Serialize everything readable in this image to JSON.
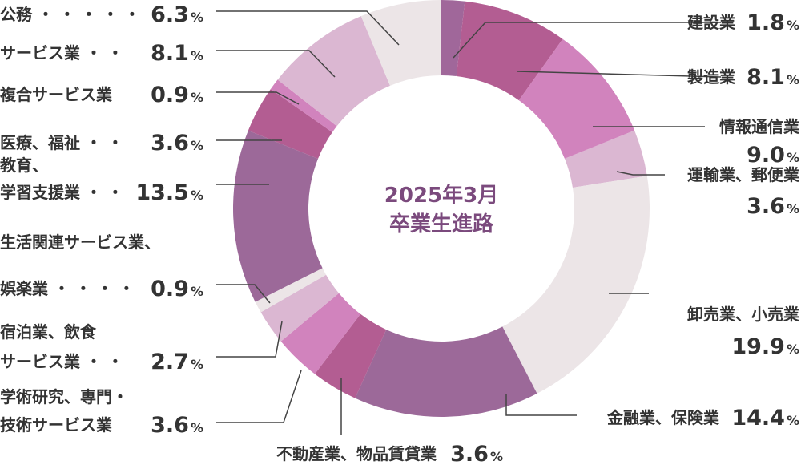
{
  "chart_data": {
    "type": "pie",
    "style": "donut",
    "center_title": [
      "2025年3月",
      "卒業生進路"
    ],
    "percent_sign": "%",
    "colors": {
      "center_text": "#7b4a7d",
      "label_text": "#333333",
      "leader_line": "#444444"
    },
    "slices": [
      {
        "id": "construction",
        "label_lines": [
          "建設業"
        ],
        "value_text": "1.8",
        "value": 1.8,
        "color": "#a0679a"
      },
      {
        "id": "manufacturing",
        "label_lines": [
          "製造業"
        ],
        "value_text": "8.1",
        "value": 8.1,
        "color": "#b35d92"
      },
      {
        "id": "info-comm",
        "label_lines": [
          "情報通信業"
        ],
        "value_text": "9.0",
        "value": 9.0,
        "color": "#d183bd"
      },
      {
        "id": "transport-postal",
        "label_lines": [
          "運輸業、郵便業"
        ],
        "value_text": "3.6",
        "value": 3.6,
        "color": "#dbb7d2"
      },
      {
        "id": "wholesale-retail",
        "label_lines": [
          "卸売業、小売業"
        ],
        "value_text": "19.9",
        "value": 19.9,
        "color": "#ece5e7"
      },
      {
        "id": "finance-insurance",
        "label_lines": [
          "金融業、保険業"
        ],
        "value_text": "14.4",
        "value": 14.4,
        "color": "#9c6999"
      },
      {
        "id": "real-estate",
        "label_lines": [
          "不動産業、物品賃貸業"
        ],
        "value_text": "3.6",
        "value": 3.6,
        "color": "#b35d92"
      },
      {
        "id": "academic-tech",
        "label_lines": [
          "学術研究、専門・",
          "技術サービス業"
        ],
        "value_text": "3.6",
        "value": 3.6,
        "color": "#d183bd"
      },
      {
        "id": "hotel-food",
        "label_lines": [
          "宿泊業、飲食",
          "サービス業 ・ ・"
        ],
        "value_text": "2.7",
        "value": 2.7,
        "color": "#dbb7d2"
      },
      {
        "id": "lifestyle-leisure",
        "label_lines": [
          "生活関連サービス業、",
          "娯楽業 ・ ・ ・ ・"
        ],
        "value_text": "0.9",
        "value": 0.9,
        "color": "#ece5e7"
      },
      {
        "id": "education",
        "label_lines": [
          "教育、",
          "学習支援業 ・ ・"
        ],
        "value_text": "13.5",
        "value": 13.5,
        "color": "#9c6999"
      },
      {
        "id": "medical-welfare",
        "label_lines": [
          "医療、福祉 ・ ・"
        ],
        "value_text": "3.6",
        "value": 3.6,
        "color": "#b35d92"
      },
      {
        "id": "compound-services",
        "label_lines": [
          "複合サービス業"
        ],
        "value_text": "0.9",
        "value": 0.9,
        "color": "#d183bd"
      },
      {
        "id": "services",
        "label_lines": [
          "サービス業 ・ ・"
        ],
        "value_text": "8.1",
        "value": 8.1,
        "color": "#dbb7d2"
      },
      {
        "id": "public-service",
        "label_lines": [
          "公務 ・ ・ ・ ・ ・"
        ],
        "value_text": "6.3",
        "value": 6.3,
        "color": "#ece5e7"
      }
    ]
  }
}
